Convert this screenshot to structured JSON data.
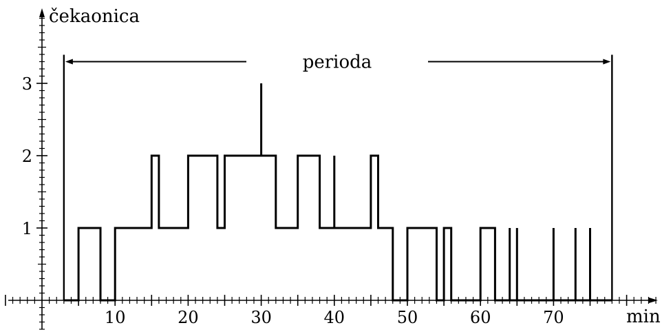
{
  "chart_data": {
    "type": "line",
    "title": "",
    "xlabel": "min",
    "ylabel": "čekaonica",
    "xlim": [
      -5,
      85
    ],
    "ylim": [
      -0.4,
      3.9
    ],
    "x_ticks": [
      "10",
      "20",
      "30",
      "40",
      "50",
      "60",
      "70"
    ],
    "y_ticks": [
      "1",
      "2",
      "3"
    ],
    "grid": false,
    "annotation": {
      "label": "perioda",
      "start": 3,
      "end": 78,
      "level": 3.3
    },
    "series": [
      {
        "step_points": [
          [
            3,
            0
          ],
          [
            5,
            0
          ],
          [
            5,
            1
          ],
          [
            8,
            1
          ],
          [
            8,
            0
          ],
          [
            10,
            0
          ],
          [
            10,
            1
          ],
          [
            15,
            1
          ],
          [
            15,
            2
          ],
          [
            16,
            2
          ],
          [
            16,
            1
          ],
          [
            20,
            1
          ],
          [
            20,
            2
          ],
          [
            24,
            2
          ],
          [
            24,
            1
          ],
          [
            25,
            1
          ],
          [
            25,
            2
          ],
          [
            30,
            2
          ],
          [
            30,
            3
          ],
          [
            30,
            2
          ],
          [
            32,
            2
          ],
          [
            32,
            1
          ],
          [
            35,
            1
          ],
          [
            35,
            2
          ],
          [
            38,
            2
          ],
          [
            38,
            1
          ],
          [
            40,
            1
          ],
          [
            40,
            2
          ],
          [
            40,
            1
          ],
          [
            45,
            1
          ],
          [
            45,
            2
          ],
          [
            46,
            2
          ],
          [
            46,
            1
          ],
          [
            48,
            1
          ],
          [
            48,
            0
          ],
          [
            50,
            0
          ],
          [
            50,
            1
          ],
          [
            54,
            1
          ],
          [
            54,
            0
          ],
          [
            55,
            0
          ],
          [
            55,
            1
          ],
          [
            56,
            1
          ],
          [
            56,
            0
          ],
          [
            60,
            0
          ],
          [
            60,
            1
          ],
          [
            62,
            1
          ],
          [
            62,
            0
          ],
          [
            64,
            0
          ],
          [
            64,
            1
          ],
          [
            64,
            0
          ],
          [
            65,
            0
          ],
          [
            65,
            1
          ],
          [
            65,
            0
          ],
          [
            70,
            0
          ],
          [
            70,
            1
          ],
          [
            70,
            0
          ],
          [
            73,
            0
          ],
          [
            73,
            1
          ],
          [
            73,
            0
          ],
          [
            75,
            0
          ],
          [
            75,
            1
          ],
          [
            75,
            0
          ],
          [
            78,
            0
          ]
        ]
      }
    ]
  }
}
